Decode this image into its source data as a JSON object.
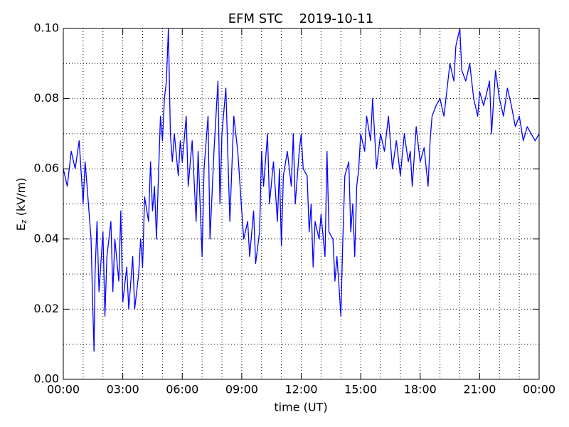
{
  "chart_data": {
    "type": "line",
    "title": "EFM STC    2019-10-11",
    "xlabel": "time (UT)",
    "ylabel": {
      "base": "E",
      "sub": "z",
      "unit": " (kV/m)"
    },
    "xlim": [
      0,
      24
    ],
    "ylim": [
      0,
      0.1
    ],
    "xticks": [
      {
        "value": 0,
        "label": "00:00"
      },
      {
        "value": 3,
        "label": "03:00"
      },
      {
        "value": 6,
        "label": "06:00"
      },
      {
        "value": 9,
        "label": "09:00"
      },
      {
        "value": 12,
        "label": "12:00"
      },
      {
        "value": 15,
        "label": "15:00"
      },
      {
        "value": 18,
        "label": "18:00"
      },
      {
        "value": 21,
        "label": "21:00"
      },
      {
        "value": 24,
        "label": "00:00"
      }
    ],
    "yticks": [
      {
        "value": 0,
        "label": "0.00"
      },
      {
        "value": 0.02,
        "label": "0.02"
      },
      {
        "value": 0.04,
        "label": "0.04"
      },
      {
        "value": 0.06,
        "label": "0.06"
      },
      {
        "value": 0.08,
        "label": "0.08"
      },
      {
        "value": 0.1,
        "label": "0.10"
      }
    ],
    "xgrid": [
      1,
      2,
      3,
      4,
      5,
      6,
      7,
      8,
      9,
      10,
      11,
      12,
      13,
      14,
      15,
      16,
      17,
      18,
      19,
      20,
      21,
      22,
      23
    ],
    "ygrid": [
      0.01,
      0.02,
      0.03,
      0.04,
      0.05,
      0.06,
      0.07,
      0.08,
      0.09
    ],
    "grid": true,
    "series": [
      {
        "name": "Ez",
        "color": "#0000ff",
        "x": [
          0.0,
          0.2,
          0.4,
          0.6,
          0.8,
          1.0,
          1.1,
          1.2,
          1.4,
          1.5,
          1.55,
          1.6,
          1.7,
          1.8,
          2.0,
          2.1,
          2.2,
          2.4,
          2.5,
          2.6,
          2.8,
          2.9,
          3.0,
          3.2,
          3.3,
          3.5,
          3.6,
          3.8,
          3.9,
          4.0,
          4.1,
          4.3,
          4.4,
          4.5,
          4.6,
          4.7,
          4.8,
          4.9,
          5.0,
          5.1,
          5.2,
          5.3,
          5.4,
          5.5,
          5.6,
          5.8,
          5.9,
          6.0,
          6.2,
          6.3,
          6.5,
          6.7,
          6.8,
          7.0,
          7.1,
          7.3,
          7.4,
          7.6,
          7.8,
          7.9,
          8.0,
          8.2,
          8.4,
          8.6,
          8.8,
          9.0,
          9.1,
          9.3,
          9.4,
          9.6,
          9.7,
          9.9,
          10.0,
          10.1,
          10.3,
          10.4,
          10.6,
          10.8,
          10.9,
          11.0,
          11.1,
          11.3,
          11.5,
          11.6,
          11.7,
          11.9,
          12.0,
          12.1,
          12.3,
          12.4,
          12.5,
          12.6,
          12.7,
          12.9,
          13.0,
          13.2,
          13.3,
          13.4,
          13.6,
          13.7,
          13.8,
          13.9,
          14.0,
          14.1,
          14.2,
          14.4,
          14.5,
          14.6,
          14.7,
          14.8,
          14.9,
          15.0,
          15.2,
          15.3,
          15.5,
          15.6,
          15.8,
          16.0,
          16.2,
          16.4,
          16.6,
          16.8,
          17.0,
          17.2,
          17.4,
          17.5,
          17.6,
          17.8,
          18.0,
          18.2,
          18.4,
          18.5,
          18.6,
          18.8,
          19.0,
          19.2,
          19.4,
          19.5,
          19.7,
          19.8,
          20.0,
          20.1,
          20.3,
          20.5,
          20.7,
          20.9,
          21.0,
          21.2,
          21.5,
          21.6,
          21.8,
          22.0,
          22.2,
          22.4,
          22.6,
          22.8,
          23.0,
          23.2,
          23.4,
          23.6,
          23.8,
          24.0
        ],
        "values": [
          0.06,
          0.055,
          0.065,
          0.06,
          0.068,
          0.05,
          0.062,
          0.055,
          0.04,
          0.018,
          0.008,
          0.03,
          0.045,
          0.025,
          0.042,
          0.018,
          0.035,
          0.045,
          0.025,
          0.04,
          0.028,
          0.048,
          0.022,
          0.032,
          0.02,
          0.035,
          0.02,
          0.03,
          0.04,
          0.032,
          0.052,
          0.045,
          0.062,
          0.048,
          0.055,
          0.04,
          0.058,
          0.075,
          0.068,
          0.08,
          0.085,
          0.1,
          0.07,
          0.062,
          0.07,
          0.058,
          0.068,
          0.062,
          0.075,
          0.055,
          0.068,
          0.045,
          0.065,
          0.035,
          0.06,
          0.075,
          0.04,
          0.065,
          0.085,
          0.05,
          0.07,
          0.083,
          0.045,
          0.075,
          0.065,
          0.048,
          0.04,
          0.045,
          0.035,
          0.048,
          0.033,
          0.042,
          0.065,
          0.055,
          0.07,
          0.05,
          0.062,
          0.045,
          0.06,
          0.038,
          0.058,
          0.065,
          0.055,
          0.07,
          0.05,
          0.065,
          0.07,
          0.06,
          0.058,
          0.042,
          0.05,
          0.032,
          0.045,
          0.04,
          0.047,
          0.035,
          0.065,
          0.042,
          0.04,
          0.028,
          0.035,
          0.027,
          0.018,
          0.04,
          0.058,
          0.062,
          0.042,
          0.05,
          0.035,
          0.055,
          0.06,
          0.07,
          0.065,
          0.075,
          0.068,
          0.08,
          0.06,
          0.07,
          0.065,
          0.075,
          0.06,
          0.068,
          0.058,
          0.07,
          0.062,
          0.065,
          0.055,
          0.072,
          0.062,
          0.066,
          0.055,
          0.068,
          0.075,
          0.078,
          0.08,
          0.075,
          0.085,
          0.09,
          0.085,
          0.095,
          0.1,
          0.088,
          0.085,
          0.09,
          0.08,
          0.075,
          0.082,
          0.078,
          0.085,
          0.07,
          0.088,
          0.08,
          0.075,
          0.083,
          0.078,
          0.072,
          0.075,
          0.068,
          0.072,
          0.07,
          0.068,
          0.07
        ]
      }
    ]
  }
}
